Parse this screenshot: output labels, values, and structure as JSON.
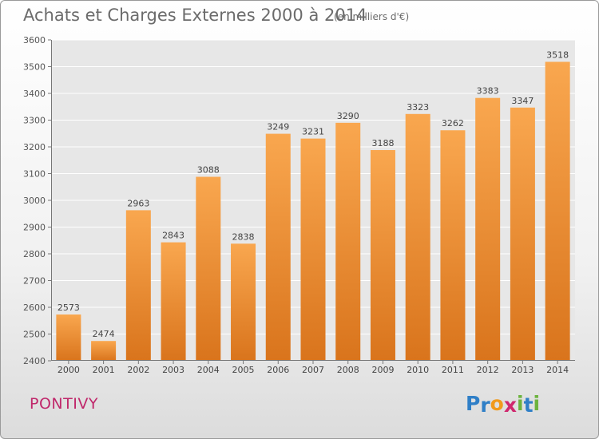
{
  "title": "Achats et Charges Externes 2000 à 2014",
  "subtitle": "(en milliers d'€)",
  "city": "PONTIVY",
  "logo": {
    "text": "Proxiti",
    "letters": [
      "P",
      "r",
      "o",
      "x",
      "i",
      "t",
      "i"
    ],
    "colors": [
      "#2f7fc7",
      "#2f7fc7",
      "#f19a1c",
      "#d0286e",
      "#6cb33e",
      "#2f7fc7",
      "#6cb33e"
    ]
  },
  "colors": {
    "bar_top": "#f9a74f",
    "bar_bottom": "#d9741c",
    "city": "#c0286b",
    "plot_bg": "#e7e7e7",
    "grid": "#ffffff"
  },
  "chart_data": {
    "type": "bar",
    "categories": [
      "2000",
      "2001",
      "2002",
      "2003",
      "2004",
      "2005",
      "2006",
      "2007",
      "2008",
      "2009",
      "2010",
      "2011",
      "2012",
      "2013",
      "2014"
    ],
    "values": [
      2573,
      2474,
      2963,
      2843,
      3088,
      2838,
      3249,
      3231,
      3290,
      3188,
      3323,
      3262,
      3383,
      3347,
      3518
    ],
    "ylim": [
      2400,
      3600
    ],
    "yticks": [
      2400,
      2500,
      2600,
      2700,
      2800,
      2900,
      3000,
      3100,
      3200,
      3300,
      3400,
      3500,
      3600
    ],
    "grid": true,
    "title": "Achats et Charges Externes 2000 à 2014",
    "xlabel": "",
    "ylabel": ""
  }
}
